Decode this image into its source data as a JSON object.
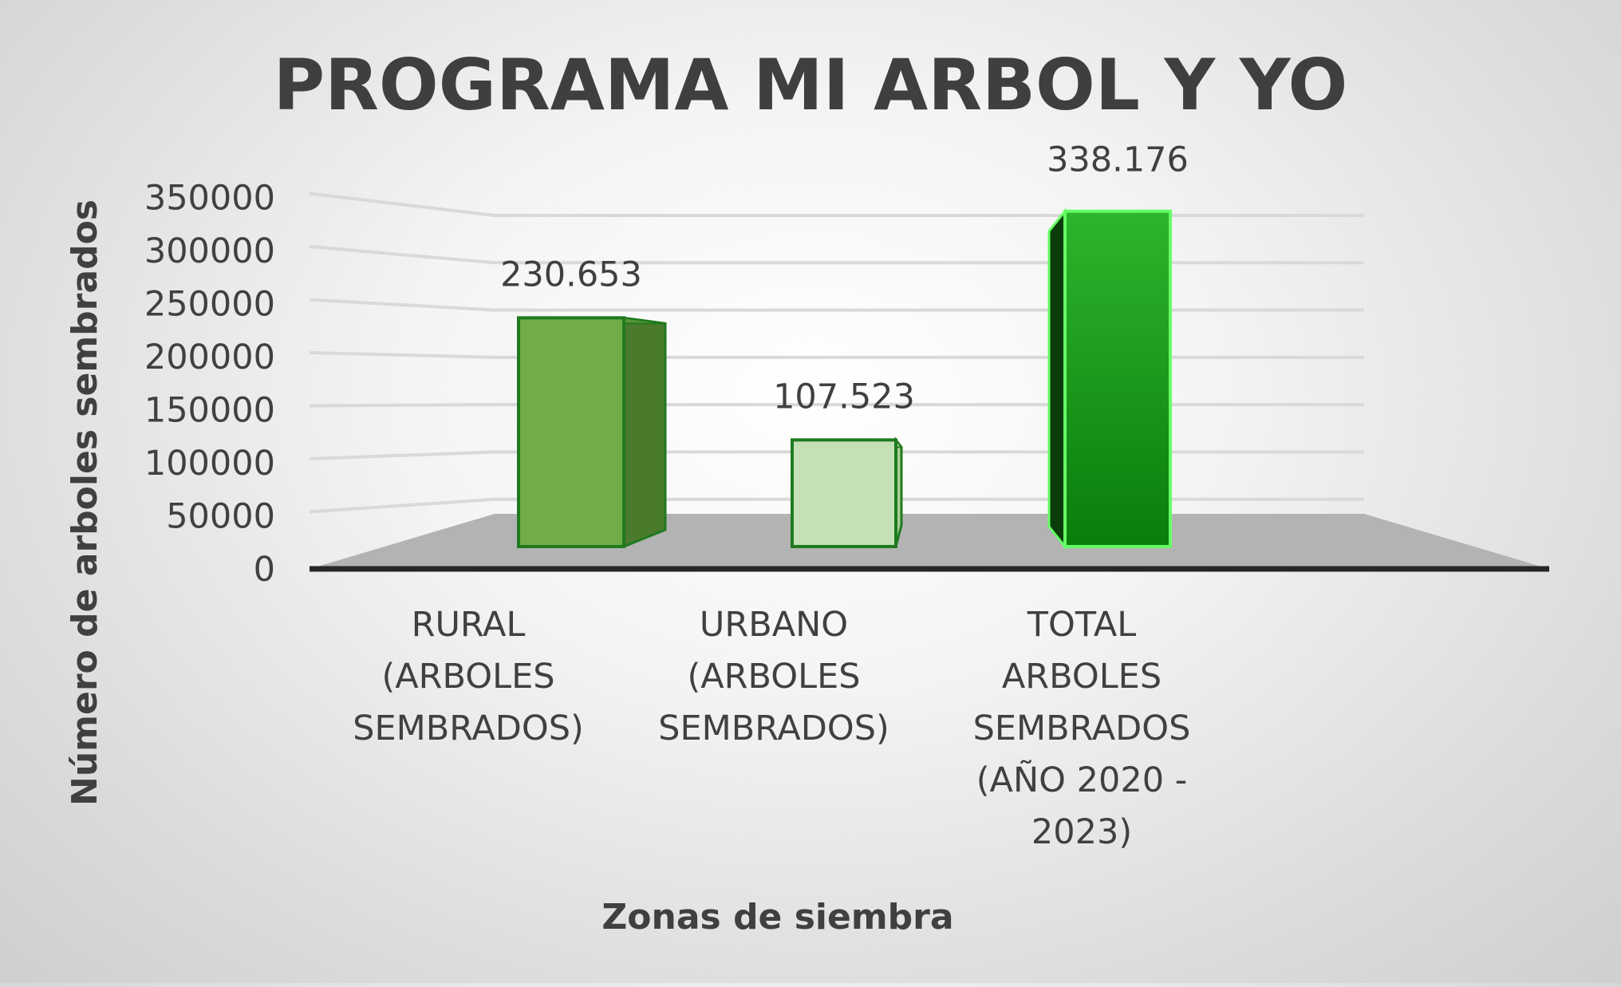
{
  "chart_data": {
    "type": "bar",
    "title": "PROGRAMA MI ARBOL Y YO",
    "xlabel": "Zonas de siembra",
    "ylabel": "Número de arboles sembrados",
    "ylim": [
      0,
      350000
    ],
    "ytick_step": 50000,
    "grid": true,
    "legend": "none",
    "categories": [
      [
        "RURAL",
        "(ARBOLES",
        "SEMBRADOS)"
      ],
      [
        "URBANO",
        "(ARBOLES",
        "SEMBRADOS)"
      ],
      [
        "TOTAL",
        "ARBOLES",
        "SEMBRADOS",
        "(AÑO 2020 -",
        "2023)"
      ]
    ],
    "values": [
      230653,
      107523,
      338176
    ],
    "data_labels": [
      "230.653",
      "107.523",
      "338.176"
    ],
    "colors": {
      "bar_fronts": [
        "#70ad47",
        "#c5e0b4",
        "#1a9a1a"
      ],
      "bar_sides": [
        "#4a7a2c",
        "#a9cf96",
        "#0a3d0a"
      ],
      "bar_tops": [
        "#5b9438",
        "#b6d8a3",
        "#56e356"
      ],
      "bar_outline": [
        "#1f7a1f",
        "#1f7a1f",
        "#66ff66"
      ],
      "floor": "#b3b3b3",
      "grid": "#d9d9d9"
    }
  }
}
